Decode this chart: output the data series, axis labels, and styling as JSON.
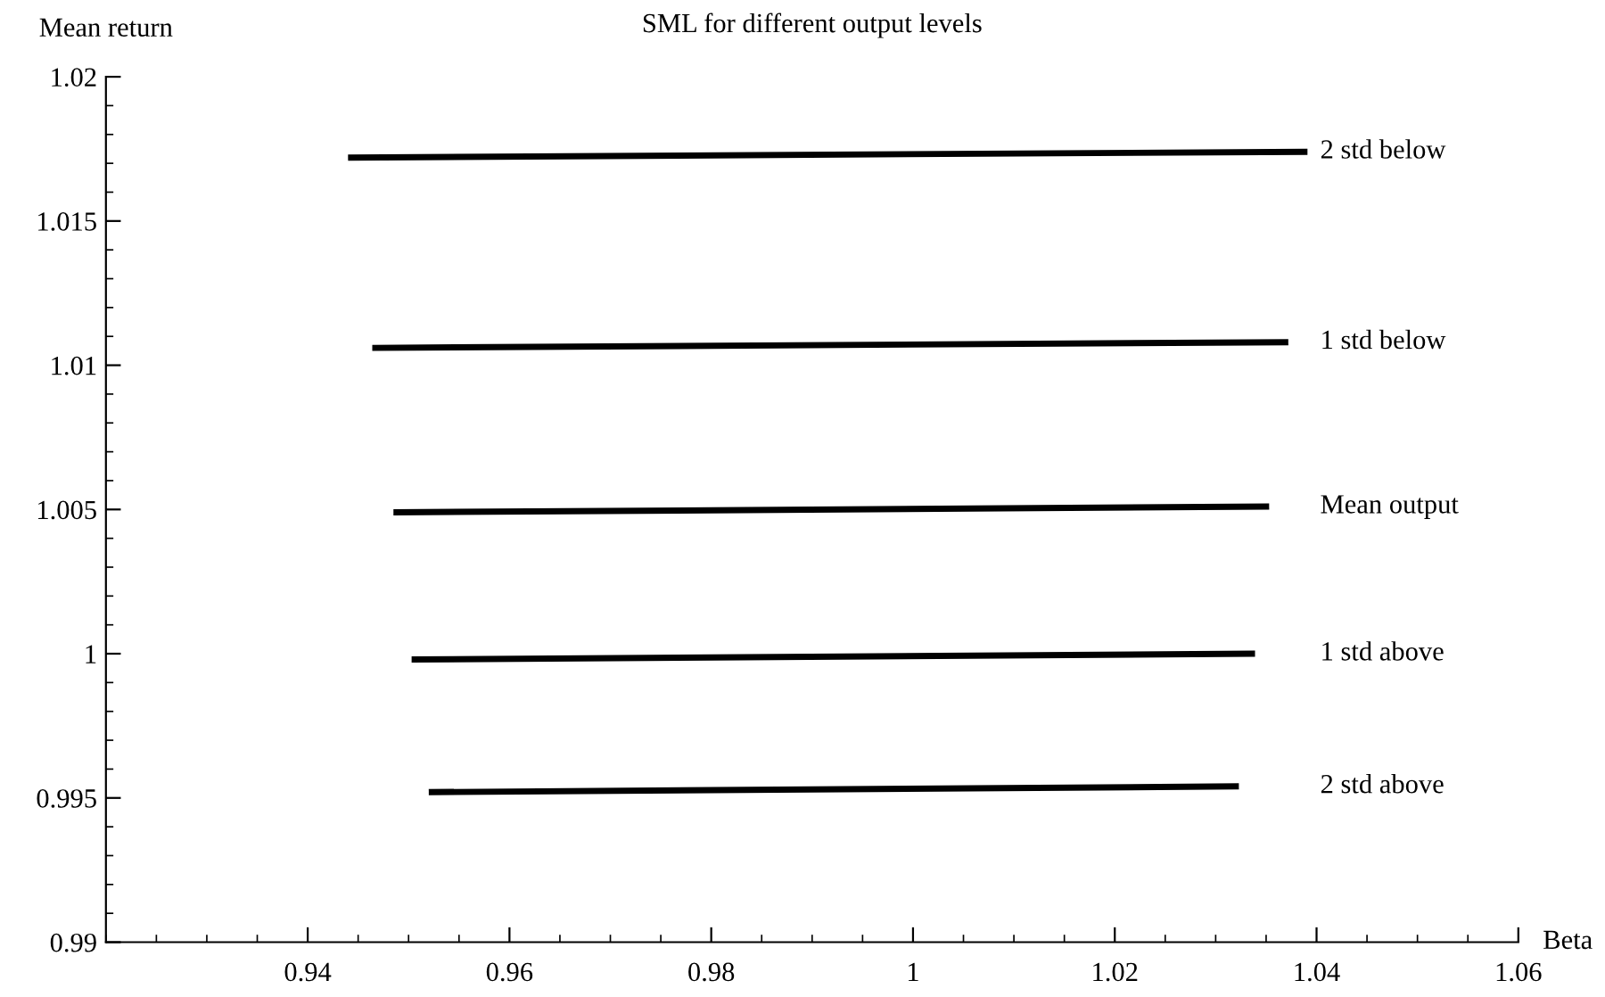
{
  "chart_data": {
    "type": "line",
    "title": "SML for different output levels",
    "xlabel": "Beta",
    "ylabel": "Mean return",
    "xlim": [
      0.92,
      1.06
    ],
    "xticks": [
      0.94,
      0.96,
      0.98,
      1,
      1.02,
      1.04,
      1.06
    ],
    "ylim": [
      0.99,
      1.02
    ],
    "yticks": [
      0.99,
      0.995,
      1,
      1.005,
      1.01,
      1.015,
      1.02
    ],
    "grid": false,
    "legend": false,
    "marker": "none",
    "line_style": "solid",
    "series": [
      {
        "name": "2 std below",
        "color": "#000000",
        "x": [
          0.944,
          1.0391
        ],
        "values": [
          1.0172,
          1.0174
        ]
      },
      {
        "name": "1 std below",
        "color": "#000000",
        "x": [
          0.9464,
          1.0372
        ],
        "values": [
          1.0106,
          1.0108
        ]
      },
      {
        "name": "Mean output",
        "color": "#000000",
        "x": [
          0.9485,
          1.0353
        ],
        "values": [
          1.0049,
          1.0051
        ]
      },
      {
        "name": "1 std above",
        "color": "#000000",
        "x": [
          0.9503,
          1.0339
        ],
        "values": [
          0.9998,
          1.0
        ]
      },
      {
        "name": "2 std above",
        "color": "#000000",
        "x": [
          0.952,
          1.0323
        ],
        "values": [
          0.9952,
          0.9954
        ]
      }
    ]
  }
}
